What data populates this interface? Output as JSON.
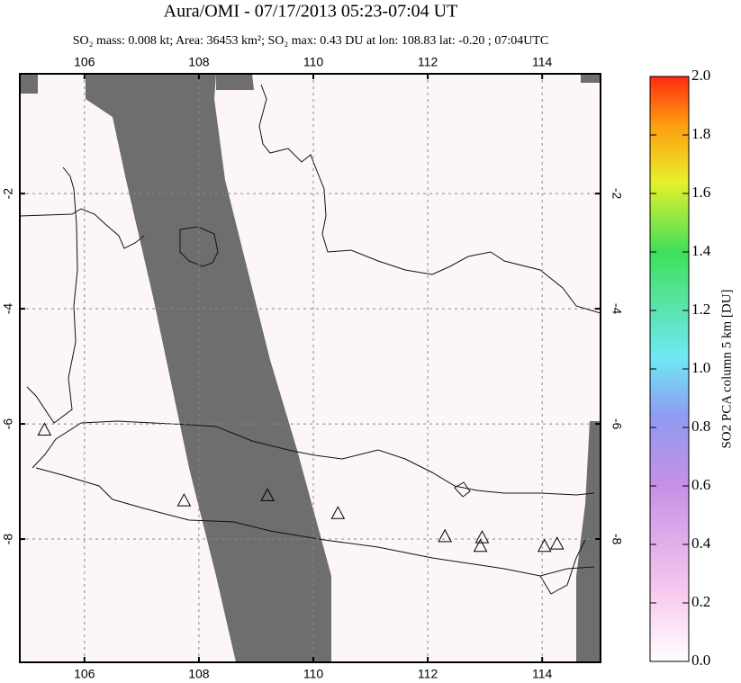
{
  "chart_data": {
    "type": "map",
    "title": "Aura/OMI - 07/17/2013 05:23-07:04 UT",
    "subtitle": "SO₂ mass: 0.008 kt; Area: 36453 km²; SO₂ max: 0.43 DU at lon: 108.83 lat: -0.20 ; 07:04UTC",
    "xlim": [
      104.87,
      115.02
    ],
    "ylim": [
      -10.14,
      0.08
    ],
    "xticks": [
      106,
      108,
      110,
      112,
      114
    ],
    "yticks": [
      -2,
      -4,
      -6,
      -8
    ],
    "grid": true,
    "volcanoes": {
      "x": [
        105.3,
        107.74,
        109.2,
        110.43,
        112.3,
        112.95,
        112.92,
        114.04,
        114.26
      ],
      "y": [
        -6.1,
        -7.33,
        -7.24,
        -7.55,
        -7.95,
        -7.97,
        -8.12,
        -8.12,
        -8.08
      ]
    },
    "colorbar": {
      "label": "SO2 PCA column 5 km [DU]",
      "ylim": [
        0,
        2
      ],
      "yticks": [
        {
          "value": 0,
          "label": "0.0"
        },
        {
          "value": 0.2,
          "label": "0.2"
        },
        {
          "value": 0.4,
          "label": "0.4"
        },
        {
          "value": 0.6,
          "label": "0.6"
        },
        {
          "value": 0.8,
          "label": "0.8"
        },
        {
          "value": 1,
          "label": "1.0"
        },
        {
          "value": 1.2,
          "label": "1.2"
        },
        {
          "value": 1.4,
          "label": "1.4"
        },
        {
          "value": 1.6,
          "label": "1.6"
        },
        {
          "value": 1.8,
          "label": "1.8"
        },
        {
          "value": 2,
          "label": "2.0"
        }
      ]
    }
  }
}
